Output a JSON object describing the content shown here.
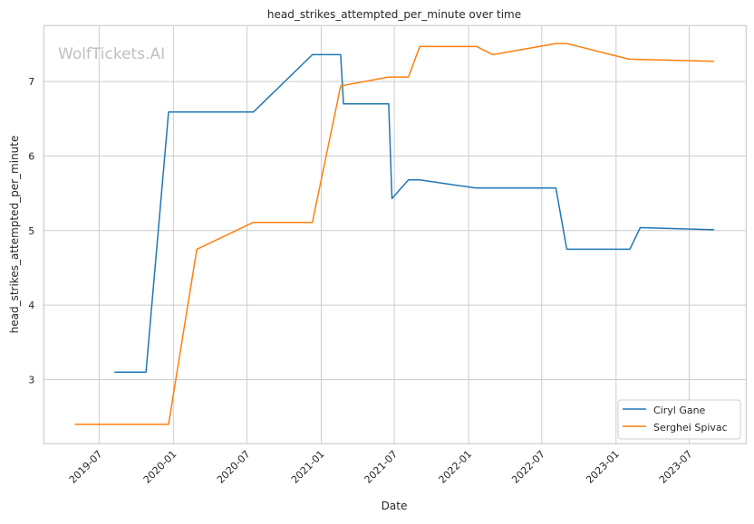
{
  "chart_data": {
    "type": "line",
    "title": "head_strikes_attempted_per_minute over time",
    "xlabel": "Date",
    "ylabel": "head_strikes_attempted_per_minute",
    "watermark": "WolfTickets.AI",
    "xlim": [
      "2019-02-14",
      "2023-11-19"
    ],
    "ylim": [
      2.14,
      7.75
    ],
    "x_ticks": [
      "2019-07",
      "2020-01",
      "2020-07",
      "2021-01",
      "2021-07",
      "2022-01",
      "2022-07",
      "2023-01",
      "2023-07"
    ],
    "y_ticks": [
      3,
      4,
      5,
      6,
      7
    ],
    "grid": true,
    "legend_placement": "lower-right",
    "series": [
      {
        "name": "Ciryl Gane",
        "color": "#1f77b4",
        "x": [
          "2019-08-08",
          "2019-10-25",
          "2019-12-20",
          "2020-07-17",
          "2020-12-10",
          "2021-02-18",
          "2021-02-25",
          "2021-06-17",
          "2021-06-25",
          "2021-08-05",
          "2021-09-02",
          "2022-01-19",
          "2022-08-05",
          "2022-09-01",
          "2023-02-04",
          "2023-03-02",
          "2023-09-01"
        ],
        "y": [
          3.1,
          3.1,
          6.59,
          6.59,
          7.36,
          7.36,
          6.7,
          6.7,
          5.43,
          5.68,
          5.68,
          5.57,
          5.57,
          4.75,
          4.75,
          5.04,
          5.01
        ]
      },
      {
        "name": "Serghei Spivac",
        "color": "#ff7f0e",
        "x": [
          "2019-05-02",
          "2019-12-20",
          "2020-02-28",
          "2020-07-17",
          "2020-12-10",
          "2021-02-18",
          "2021-06-17",
          "2021-08-05",
          "2021-09-02",
          "2022-01-21",
          "2022-03-02",
          "2022-08-05",
          "2022-09-01",
          "2023-02-02",
          "2023-09-01"
        ],
        "y": [
          2.4,
          2.4,
          4.75,
          5.11,
          5.11,
          6.94,
          7.06,
          7.06,
          7.47,
          7.47,
          7.36,
          7.51,
          7.51,
          7.3,
          7.27
        ]
      }
    ]
  }
}
